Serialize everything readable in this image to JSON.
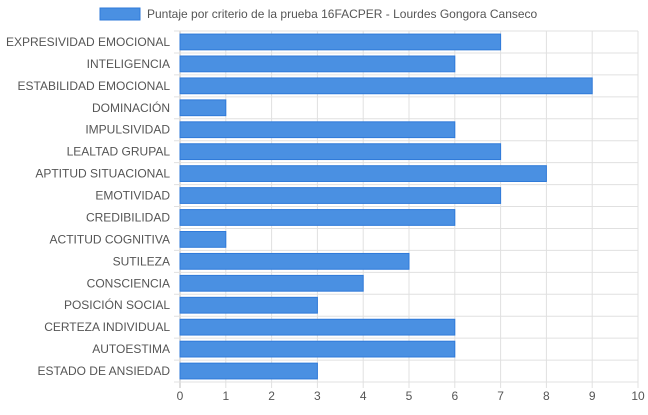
{
  "chart_data": {
    "type": "bar",
    "orientation": "horizontal",
    "categories": [
      "EXPRESIVIDAD EMOCIONAL",
      "INTELIGENCIA",
      "ESTABILIDAD EMOCIONAL",
      "DOMINACIÓN",
      "IMPULSIVIDAD",
      "LEALTAD GRUPAL",
      "APTITUD SITUACIONAL",
      "EMOTIVIDAD",
      "CREDIBILIDAD",
      "ACTITUD COGNITIVA",
      "SUTILEZA",
      "CONSCIENCIA",
      "POSICIÓN SOCIAL",
      "CERTEZA INDIVIDUAL",
      "AUTOESTIMA",
      "ESTADO DE ANSIEDAD"
    ],
    "series": [
      {
        "name": "Puntaje por criterio de la prueba 16FACPER - Lourdes Gongora Canseco",
        "values": [
          7,
          6,
          9,
          1,
          6,
          7,
          8,
          7,
          6,
          1,
          5,
          4,
          3,
          6,
          6,
          3
        ],
        "color": "#4a90e2"
      }
    ],
    "xlim": [
      0,
      10
    ],
    "x_ticks": [
      "0",
      "1",
      "2",
      "3",
      "4",
      "5",
      "6",
      "7",
      "8",
      "9",
      "10"
    ],
    "grid": true,
    "legend_position": "top-center",
    "colors": {
      "bar_fill": "#4a90e2",
      "bar_stroke": "#2f7ad9",
      "grid": "#e0e0e0",
      "text": "#555555"
    }
  }
}
